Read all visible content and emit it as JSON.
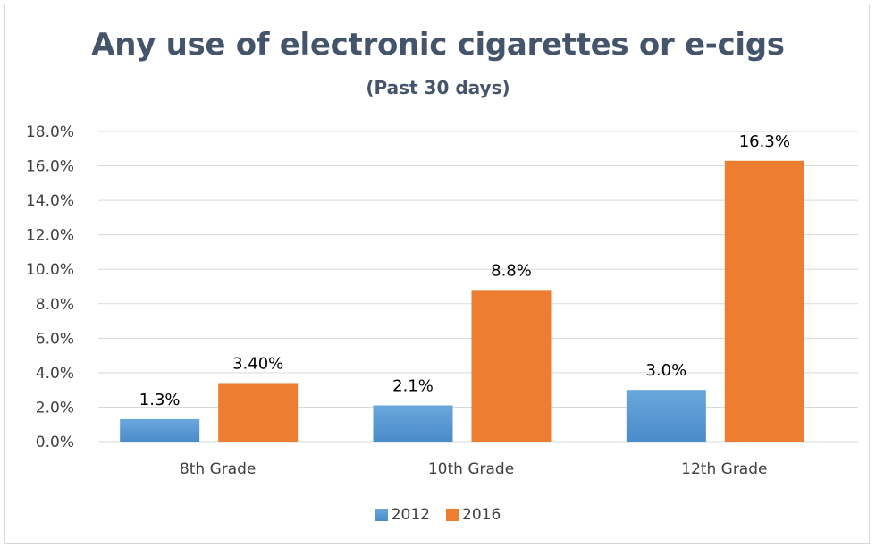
{
  "chart_data": {
    "type": "bar",
    "title": "Any use of electronic cigarettes or e-cigs",
    "subtitle": "(Past 30 days)",
    "categories": [
      "8th Grade",
      "10th Grade",
      "12th Grade"
    ],
    "series": [
      {
        "name": "2012",
        "values": [
          1.3,
          2.1,
          3.0
        ],
        "labels": [
          "1.3%",
          "2.1%",
          "3.0%"
        ],
        "color": "#5b9bd5"
      },
      {
        "name": "2016",
        "values": [
          3.4,
          8.8,
          16.3
        ],
        "labels": [
          "3.40%",
          "8.8%",
          "16.3%"
        ],
        "color": "#ed7d31"
      }
    ],
    "ylim": [
      0,
      18
    ],
    "yticks": [
      0,
      2,
      4,
      6,
      8,
      10,
      12,
      14,
      16,
      18
    ],
    "ytick_labels": [
      "0.0%",
      "2.0%",
      "4.0%",
      "6.0%",
      "8.0%",
      "10.0%",
      "12.0%",
      "14.0%",
      "16.0%",
      "18.0%"
    ],
    "grid": true,
    "legend": "bottom",
    "xlabel": "",
    "ylabel": ""
  }
}
